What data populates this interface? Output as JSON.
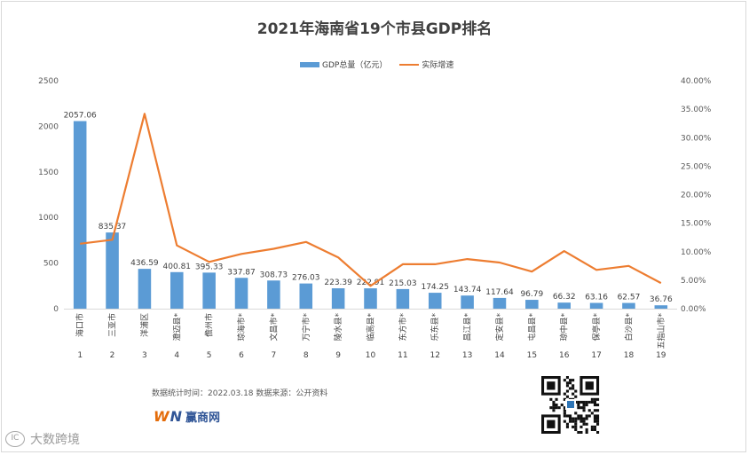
{
  "chart_data": {
    "type": "bar",
    "title": "2021年海南省19个市县GDP排名",
    "categories": [
      "海口市",
      "三亚市",
      "洋浦区",
      "澄迈县*",
      "儋州市",
      "琼海市*",
      "文昌市*",
      "万宁市*",
      "陵水县*",
      "临高县*",
      "东方市*",
      "乐东县*",
      "昌江县*",
      "定安县*",
      "屯昌县*",
      "琼中县*",
      "保亭县*",
      "白沙县*",
      "五指山市*"
    ],
    "ranks": [
      "1",
      "2",
      "3",
      "4",
      "5",
      "6",
      "7",
      "8",
      "9",
      "10",
      "11",
      "12",
      "13",
      "14",
      "15",
      "16",
      "17",
      "18",
      "19"
    ],
    "series": [
      {
        "name": "GDP总量（亿元）",
        "type": "bar",
        "axis": "left",
        "color": "#5b9bd5",
        "values": [
          2057.06,
          835.37,
          436.59,
          400.81,
          395.33,
          337.87,
          308.73,
          276.03,
          223.39,
          222.91,
          215.03,
          174.25,
          143.74,
          117.64,
          96.79,
          66.32,
          63.16,
          62.57,
          36.76
        ],
        "labels": [
          "2057.06",
          "835.37",
          "436.59",
          "400.81",
          "395.33",
          "337.87",
          "308.73",
          "276.03",
          "223.39",
          "222.91",
          "215.03",
          "174.25",
          "143.74",
          "117.64",
          "96.79",
          "66.32",
          "63.16",
          "62.57",
          "36.76"
        ]
      },
      {
        "name": "实际增速",
        "type": "line",
        "axis": "right",
        "color": "#ed7d31",
        "values": [
          11.4,
          12.1,
          34.2,
          11.1,
          8.2,
          9.6,
          10.5,
          11.7,
          9.0,
          4.0,
          7.8,
          7.8,
          8.7,
          8.1,
          6.5,
          10.1,
          6.8,
          7.5,
          4.5
        ]
      }
    ],
    "y_left": {
      "ylim": [
        0,
        2500
      ],
      "ticks": [
        "0",
        "500",
        "1000",
        "1500",
        "2000",
        "2500"
      ]
    },
    "y_right": {
      "ylim": [
        0,
        40
      ],
      "ticks": [
        "0.00%",
        "5.00%",
        "10.00%",
        "15.00%",
        "20.00%",
        "25.00%",
        "30.00%",
        "35.00%",
        "40.00%"
      ]
    },
    "legend_position": "top-center",
    "grid": false
  },
  "footer": {
    "note": "数据统计时间：2022.03.18 数据来源：公开资料"
  },
  "brand": {
    "w": "W",
    "n": "N",
    "name": "赢商网"
  },
  "watermark": {
    "text": "大数跨境"
  }
}
